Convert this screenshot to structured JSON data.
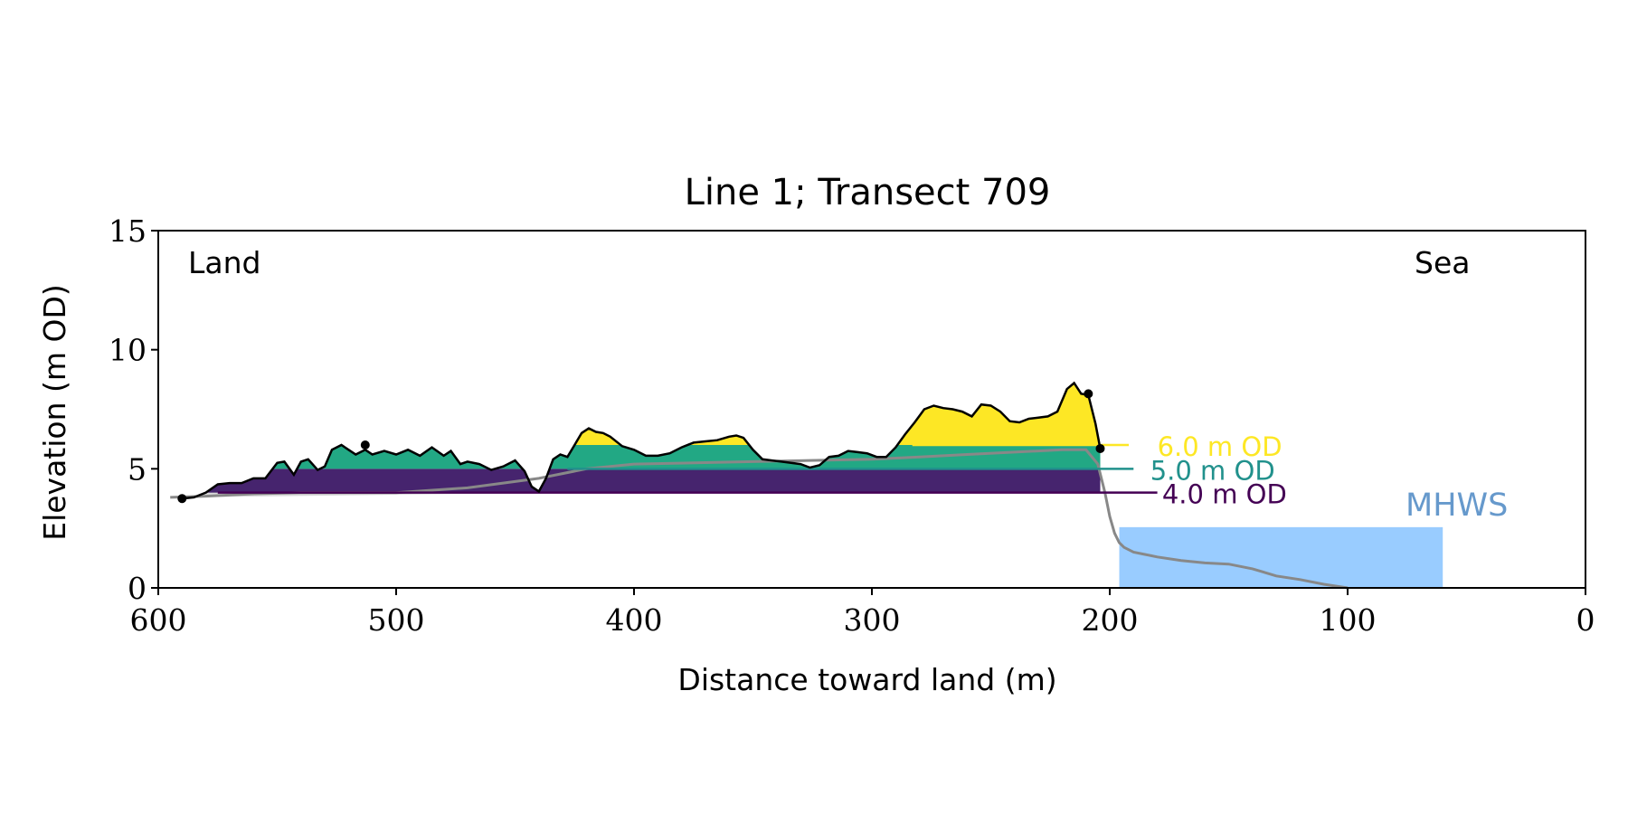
{
  "chart_data": {
    "type": "area",
    "title": "Line 1; Transect 709",
    "xlabel": "Distance toward land (m)",
    "ylabel": "Elevation (m OD)",
    "xlim": [
      600,
      0
    ],
    "ylim": [
      0,
      15
    ],
    "x_ticks": [
      600,
      500,
      400,
      300,
      200,
      100,
      0
    ],
    "y_ticks": [
      0,
      5,
      10,
      15
    ],
    "x_tick_labels": [
      "600",
      "500",
      "400",
      "300",
      "200",
      "100",
      "0"
    ],
    "y_tick_labels": [
      "0",
      "5",
      "10",
      "15"
    ],
    "grid": false,
    "annotations": {
      "land": "Land",
      "sea": "Sea"
    },
    "profile": {
      "x": [
        590,
        585,
        580,
        575,
        570,
        565,
        560,
        555,
        550,
        547,
        543,
        540,
        537,
        533,
        530,
        527,
        523,
        520,
        517,
        513,
        510,
        505,
        500,
        495,
        490,
        485,
        480,
        477,
        473,
        470,
        465,
        460,
        455,
        450,
        446,
        443,
        440,
        437,
        434,
        431,
        428,
        425,
        422,
        419,
        416,
        413,
        410,
        405,
        400,
        395,
        390,
        385,
        380,
        375,
        370,
        365,
        360,
        357,
        354,
        350,
        346,
        342,
        338,
        334,
        330,
        326,
        322,
        318,
        314,
        310,
        306,
        302,
        298,
        294,
        290,
        286,
        282,
        278,
        274,
        270,
        266,
        262,
        258,
        254,
        250,
        246,
        242,
        238,
        234,
        230,
        226,
        222,
        218,
        215,
        212,
        209,
        206,
        204
      ],
      "y": [
        3.75,
        3.8,
        4.0,
        4.35,
        4.4,
        4.4,
        4.6,
        4.6,
        5.25,
        5.3,
        4.75,
        5.3,
        5.4,
        4.95,
        5.1,
        5.8,
        6.0,
        5.8,
        5.6,
        5.8,
        5.6,
        5.75,
        5.6,
        5.8,
        5.55,
        5.9,
        5.55,
        5.75,
        5.2,
        5.3,
        5.2,
        4.95,
        5.1,
        5.35,
        4.9,
        4.25,
        4.05,
        4.6,
        5.4,
        5.6,
        5.5,
        6.0,
        6.5,
        6.7,
        6.55,
        6.5,
        6.35,
        5.95,
        5.8,
        5.55,
        5.55,
        5.65,
        5.9,
        6.1,
        6.15,
        6.2,
        6.35,
        6.4,
        6.3,
        5.8,
        5.4,
        5.35,
        5.3,
        5.25,
        5.2,
        5.05,
        5.15,
        5.5,
        5.55,
        5.75,
        5.7,
        5.65,
        5.5,
        5.5,
        5.9,
        6.45,
        6.95,
        7.5,
        7.65,
        7.55,
        7.5,
        7.4,
        7.2,
        7.7,
        7.65,
        7.4,
        7.0,
        6.95,
        7.1,
        7.15,
        7.2,
        7.4,
        8.35,
        8.6,
        8.15,
        8.1,
        6.9,
        5.85
      ],
      "markers": [
        [
          590,
          3.75
        ],
        [
          513,
          6.0
        ],
        [
          209,
          8.15
        ],
        [
          204,
          5.85
        ]
      ]
    },
    "underlying_profile": {
      "x": [
        595,
        580,
        560,
        540,
        520,
        500,
        470,
        440,
        420,
        400,
        350,
        300,
        280,
        260,
        240,
        220,
        210,
        205,
        202,
        200,
        198,
        196,
        194,
        190,
        185,
        180,
        170,
        160,
        150,
        140,
        130,
        120,
        110,
        100
      ],
      "y": [
        3.8,
        3.85,
        3.95,
        4.0,
        4.0,
        4.0,
        4.2,
        4.6,
        5.0,
        5.2,
        5.3,
        5.4,
        5.5,
        5.6,
        5.7,
        5.8,
        5.8,
        5.2,
        4.0,
        3.0,
        2.3,
        1.9,
        1.7,
        1.5,
        1.4,
        1.3,
        1.15,
        1.05,
        1.0,
        0.8,
        0.5,
        0.35,
        0.15,
        0.0
      ]
    },
    "levels": [
      {
        "name": "4.0 m OD",
        "value": 4.0,
        "color": "#440154"
      },
      {
        "name": "5.0 m OD",
        "value": 5.0,
        "color": "#21918c"
      },
      {
        "name": "6.0 m OD",
        "value": 6.0,
        "color": "#fde725"
      }
    ],
    "fill_colors": [
      "#46246e",
      "#22a884",
      "#fde725"
    ],
    "mhws": {
      "label": "MHWS",
      "value": 2.55,
      "x_range": [
        196,
        60
      ],
      "color": "#99ccff",
      "label_color": "#6699cc"
    }
  }
}
